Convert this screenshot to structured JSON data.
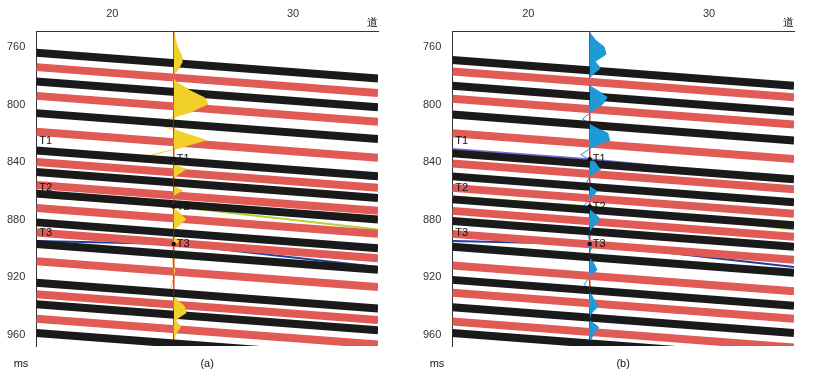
{
  "chart_data": [
    {
      "type": "seismic_section",
      "panel_label": "(a)",
      "x_label": "道",
      "y_label": "ms",
      "xlim": [
        15.8,
        34.7
      ],
      "xticks": [
        20,
        30
      ],
      "ylim": [
        749,
        968
      ],
      "yticks": [
        760,
        800,
        840,
        880,
        920,
        960
      ],
      "grid": false,
      "events_x": [
        15.8,
        34.7
      ],
      "events": [
        {
          "color": "#1a1a1a",
          "values": [
            764,
            782
          ]
        },
        {
          "color": "#e05a56",
          "values": [
            774,
            792
          ]
        },
        {
          "color": "#1a1a1a",
          "values": [
            784,
            802
          ]
        },
        {
          "color": "#e05a56",
          "values": [
            794,
            812
          ]
        },
        {
          "color": "#1a1a1a",
          "values": [
            806,
            824
          ]
        },
        {
          "color": "#e05a56",
          "values": [
            819,
            837
          ]
        },
        {
          "color": "#1a1a1a",
          "values": [
            832,
            850
          ]
        },
        {
          "color": "#e05a56",
          "values": [
            840,
            858
          ]
        },
        {
          "color": "#1a1a1a",
          "values": [
            847,
            865
          ]
        },
        {
          "color": "#e05a56",
          "values": [
            856,
            874
          ]
        },
        {
          "color": "#1a1a1a",
          "values": [
            862,
            880
          ]
        },
        {
          "color": "#e05a56",
          "values": [
            872,
            890
          ]
        },
        {
          "color": "#1a1a1a",
          "values": [
            882,
            900
          ]
        },
        {
          "color": "#e05a56",
          "values": [
            889,
            907
          ]
        },
        {
          "color": "#1a1a1a",
          "values": [
            897,
            915
          ]
        },
        {
          "color": "#e05a56",
          "values": [
            909,
            927
          ]
        },
        {
          "color": "#1a1a1a",
          "values": [
            924,
            942
          ]
        },
        {
          "color": "#e05a56",
          "values": [
            932,
            950
          ]
        },
        {
          "color": "#1a1a1a",
          "values": [
            939,
            957
          ]
        },
        {
          "color": "#e05a56",
          "values": [
            949,
            967
          ]
        },
        {
          "color": "#1a1a1a",
          "values": [
            959,
            977
          ]
        }
      ],
      "horizons": [
        {
          "name": "T1",
          "color": "#6f6fd6",
          "x": [
            15.8,
            23.4,
            34.7
          ],
          "values": [
            831,
            838,
            852
          ]
        },
        {
          "name": "T2",
          "color": "#b5d334",
          "x": [
            15.8,
            23.4,
            34.7
          ],
          "values": [
            864,
            871,
            887
          ]
        },
        {
          "name": "T3",
          "color": "#1f3fa0",
          "x": [
            15.8,
            23.4,
            34.7
          ],
          "values": [
            895,
            897,
            913
          ]
        }
      ],
      "well": {
        "position": 23.4,
        "color": "#e8262a"
      },
      "trace": {
        "color": "#f2d02a",
        "times": [
          750,
          755,
          760,
          765,
          770,
          775,
          780,
          785,
          790,
          795,
          800,
          805,
          810,
          815,
          820,
          825,
          830,
          835,
          840,
          845,
          850,
          855,
          860,
          865,
          870,
          875,
          880,
          885,
          890,
          895,
          900,
          905,
          910,
          915,
          920,
          925,
          930,
          935,
          940,
          945,
          950,
          955,
          960,
          965
        ],
        "amplitudes": [
          0,
          0.1,
          0.2,
          0.4,
          0.5,
          0.3,
          -0.1,
          0.2,
          0.9,
          1.7,
          1.9,
          1.0,
          -0.3,
          -0.6,
          0.6,
          1.8,
          0.4,
          -1.2,
          -0.5,
          0.7,
          0.1,
          -0.4,
          0.5,
          -0.2,
          -0.4,
          0.3,
          0.7,
          0.2,
          -0.2,
          0.3,
          -0.1,
          0,
          -0.1,
          0.1,
          0,
          -0.1,
          -0.2,
          0.1,
          0.6,
          0.7,
          0.1,
          0.4,
          0.1,
          0
        ]
      }
    },
    {
      "type": "seismic_section",
      "panel_label": "(b)",
      "x_label": "道",
      "y_label": "ms",
      "xlim": [
        15.8,
        34.7
      ],
      "xticks": [
        20,
        30
      ],
      "ylim": [
        749,
        968
      ],
      "yticks": [
        760,
        800,
        840,
        880,
        920,
        960
      ],
      "grid": false,
      "events_x": [
        15.8,
        34.7
      ],
      "events": [
        {
          "color": "#1a1a1a",
          "values": [
            769,
            787
          ]
        },
        {
          "color": "#e05a56",
          "values": [
            777,
            795
          ]
        },
        {
          "color": "#1a1a1a",
          "values": [
            787,
            805
          ]
        },
        {
          "color": "#e05a56",
          "values": [
            796,
            814
          ]
        },
        {
          "color": "#1a1a1a",
          "values": [
            807,
            825
          ]
        },
        {
          "color": "#e05a56",
          "values": [
            820,
            838
          ]
        },
        {
          "color": "#1a1a1a",
          "values": [
            834,
            852
          ]
        },
        {
          "color": "#e05a56",
          "values": [
            841,
            859
          ]
        },
        {
          "color": "#1a1a1a",
          "values": [
            850,
            868
          ]
        },
        {
          "color": "#e05a56",
          "values": [
            858,
            876
          ]
        },
        {
          "color": "#1a1a1a",
          "values": [
            866,
            884
          ]
        },
        {
          "color": "#e05a56",
          "values": [
            874,
            892
          ]
        },
        {
          "color": "#1a1a1a",
          "values": [
            881,
            899
          ]
        },
        {
          "color": "#e05a56",
          "values": [
            890,
            908
          ]
        },
        {
          "color": "#1a1a1a",
          "values": [
            899,
            917
          ]
        },
        {
          "color": "#e05a56",
          "values": [
            912,
            930
          ]
        },
        {
          "color": "#1a1a1a",
          "values": [
            922,
            940
          ]
        },
        {
          "color": "#e05a56",
          "values": [
            931,
            949
          ]
        },
        {
          "color": "#1a1a1a",
          "values": [
            941,
            959
          ]
        },
        {
          "color": "#e05a56",
          "values": [
            951,
            969
          ]
        },
        {
          "color": "#1a1a1a",
          "values": [
            959,
            977
          ]
        }
      ],
      "horizons": [
        {
          "name": "T1",
          "color": "#6f6fd6",
          "x": [
            15.8,
            23.4,
            34.7
          ],
          "values": [
            831,
            838,
            852
          ]
        },
        {
          "name": "T2",
          "color": "#b5d334",
          "x": [
            15.8,
            23.4,
            34.7
          ],
          "values": [
            864,
            871,
            887
          ]
        },
        {
          "name": "T3",
          "color": "#1f3fa0",
          "x": [
            15.8,
            23.4,
            34.7
          ],
          "values": [
            895,
            897,
            913
          ]
        }
      ],
      "well": {
        "position": 23.4,
        "color": "#e8262a"
      },
      "trace": {
        "color": "#1e9bd7",
        "times": [
          750,
          755,
          760,
          765,
          770,
          775,
          780,
          785,
          790,
          795,
          800,
          805,
          810,
          815,
          820,
          825,
          830,
          835,
          840,
          845,
          850,
          855,
          860,
          865,
          870,
          875,
          880,
          885,
          890,
          895,
          900,
          905,
          910,
          915,
          920,
          925,
          930,
          935,
          940,
          945,
          950,
          955,
          960,
          965
        ],
        "amplitudes": [
          0,
          0.3,
          0.8,
          0.9,
          0.3,
          0.6,
          0.1,
          -0.3,
          0.4,
          1.0,
          0.7,
          0.1,
          -0.4,
          0.2,
          1.0,
          1.1,
          0.1,
          -0.5,
          0.3,
          0.6,
          0,
          -0.2,
          0.4,
          0.1,
          -0.3,
          0.2,
          0.6,
          0.2,
          -0.1,
          0,
          0.1,
          -0.1,
          0.2,
          0.4,
          0,
          -0.3,
          0,
          0.2,
          0.5,
          0.1,
          0,
          0.5,
          0.2,
          0
        ]
      }
    }
  ]
}
